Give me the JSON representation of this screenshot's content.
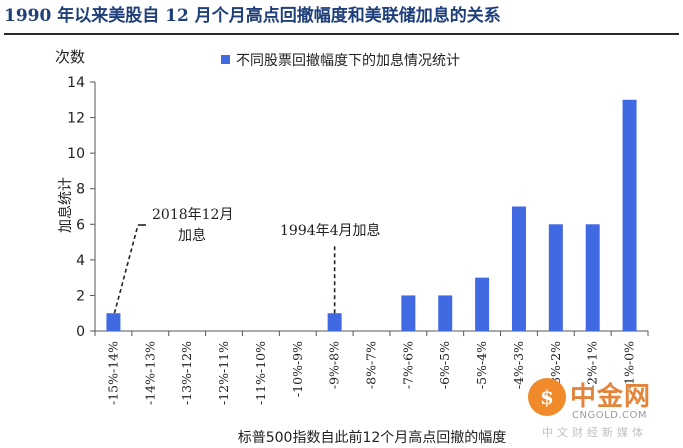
{
  "header": {
    "title": "1990 年以来美股自 12 月个月高点回撤幅度和美联储加息的关系"
  },
  "chart_data": {
    "type": "bar",
    "y_unit_label": "次数",
    "ylabel": "加息统计",
    "xlabel": "标普500指数自此前12个月高点回撤的幅度",
    "legend": "不同股票回撤幅度下的加息情况统计",
    "legend_position": "top-right",
    "ylim": [
      0,
      14
    ],
    "yticks": [
      0,
      2,
      4,
      6,
      8,
      10,
      12,
      14
    ],
    "grid": false,
    "bar_color": "#4169e1",
    "categories": [
      "-15%-14%",
      "-14%-13%",
      "-13%-12%",
      "-12%-11%",
      "-11%-10%",
      "-10%-9%",
      "-9%-8%",
      "-8%-7%",
      "-7%-6%",
      "-6%-5%",
      "-5%-4%",
      "-4%-3%",
      "-3%-2%",
      "-2%-1%",
      "-1%-0%"
    ],
    "values": [
      1,
      0,
      0,
      0,
      0,
      0,
      1,
      0,
      2,
      2,
      3,
      7,
      6,
      6,
      13
    ],
    "annotations": [
      {
        "lines": [
          "2018年12月",
          "加息"
        ],
        "category_index": 0
      },
      {
        "lines": [
          "1994年4月加息"
        ],
        "category_index": 6
      }
    ]
  },
  "watermark": {
    "name": "中金网",
    "domain": "CNGOLD.COM",
    "tagline": "中文财经新媒体"
  }
}
